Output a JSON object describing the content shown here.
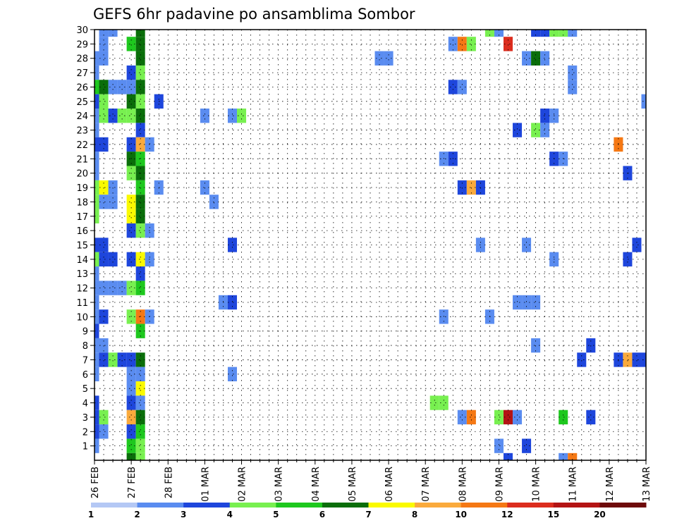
{
  "chart_data": {
    "type": "heatmap",
    "title": "GEFS 6hr padavine po ansamblima Sombor",
    "xlabel": "",
    "ylabel": "",
    "x_ticks": [
      "26 FEB",
      "27 FEB",
      "28 FEB",
      "01 MAR",
      "02 MAR",
      "03 MAR",
      "04 MAR",
      "05 MAR",
      "06 MAR",
      "07 MAR",
      "08 MAR",
      "09 MAR",
      "10 MAR",
      "11 MAR",
      "12 MAR",
      "13 MAR"
    ],
    "y_ticks": [
      "1",
      "2",
      "3",
      "4",
      "5",
      "6",
      "7",
      "8",
      "9",
      "10",
      "11",
      "12",
      "13",
      "14",
      "15",
      "16",
      "17",
      "18",
      "19",
      "20",
      "21",
      "22",
      "23",
      "24",
      "25",
      "26",
      "27",
      "28",
      "29",
      "30"
    ],
    "xlim": [
      0,
      15
    ],
    "ylim": [
      0,
      30
    ],
    "grid": true,
    "levels": [
      1,
      2,
      3,
      4,
      5,
      6,
      7,
      8,
      10,
      12,
      15,
      20
    ],
    "level_labels": [
      "1",
      "2",
      "3",
      "4",
      "5",
      "6",
      "7",
      "8",
      "10",
      "12",
      "15",
      "20"
    ],
    "colors": [
      "#b4c8f5",
      "#5a8cf0",
      "#1e46dc",
      "#78f050",
      "#1ec81e",
      "#0a6e0a",
      "#fafa00",
      "#faaa3c",
      "#f57814",
      "#dc2d1e",
      "#b41414",
      "#6e0a0a"
    ],
    "cells": [
      [
        0.25,
        30,
        1
      ],
      [
        0.5,
        30,
        1
      ],
      [
        1.25,
        30,
        5
      ],
      [
        10.75,
        30,
        3
      ],
      [
        11,
        30,
        1
      ],
      [
        12,
        30,
        2
      ],
      [
        12.25,
        30,
        2
      ],
      [
        12.5,
        30,
        3
      ],
      [
        12.75,
        30,
        3
      ],
      [
        13,
        30,
        1
      ],
      [
        0.25,
        29,
        1
      ],
      [
        1,
        29,
        4
      ],
      [
        1.25,
        29,
        5
      ],
      [
        9.75,
        29,
        1
      ],
      [
        10,
        29,
        8
      ],
      [
        10.25,
        29,
        3
      ],
      [
        11.25,
        29,
        9
      ],
      [
        0,
        28,
        1
      ],
      [
        0.25,
        28,
        1
      ],
      [
        1.25,
        28,
        5
      ],
      [
        7.75,
        28,
        1
      ],
      [
        8,
        28,
        1
      ],
      [
        11.75,
        28,
        1
      ],
      [
        12,
        28,
        5
      ],
      [
        12.25,
        28,
        1
      ],
      [
        0,
        27,
        1
      ],
      [
        1,
        27,
        2
      ],
      [
        1.25,
        27,
        3
      ],
      [
        13,
        27,
        1
      ],
      [
        0,
        26,
        4
      ],
      [
        0.25,
        26,
        5
      ],
      [
        0.5,
        26,
        1
      ],
      [
        0.75,
        26,
        1
      ],
      [
        1,
        26,
        1
      ],
      [
        1.25,
        26,
        5
      ],
      [
        9.75,
        26,
        2
      ],
      [
        10,
        26,
        1
      ],
      [
        13,
        26,
        1
      ],
      [
        0,
        25,
        2
      ],
      [
        0.25,
        25,
        3
      ],
      [
        1,
        25,
        5
      ],
      [
        1.25,
        25,
        3
      ],
      [
        1.75,
        25,
        2
      ],
      [
        15,
        25,
        1
      ],
      [
        0,
        24,
        1
      ],
      [
        0.25,
        24,
        3
      ],
      [
        0.5,
        24,
        2
      ],
      [
        0.75,
        24,
        3
      ],
      [
        1,
        24,
        3
      ],
      [
        1.25,
        24,
        5
      ],
      [
        3,
        24,
        1
      ],
      [
        3.75,
        24,
        1
      ],
      [
        4,
        24,
        3
      ],
      [
        12.25,
        24,
        2
      ],
      [
        12.5,
        24,
        1
      ],
      [
        0,
        23,
        1
      ],
      [
        1.25,
        23,
        2
      ],
      [
        11.5,
        23,
        2
      ],
      [
        12,
        23,
        3
      ],
      [
        12.25,
        23,
        1
      ],
      [
        0,
        22,
        2
      ],
      [
        0.25,
        22,
        2
      ],
      [
        1,
        22,
        2
      ],
      [
        1.25,
        22,
        7
      ],
      [
        1.5,
        22,
        1
      ],
      [
        14.25,
        22,
        8
      ],
      [
        0,
        21,
        1
      ],
      [
        1,
        21,
        5
      ],
      [
        1.25,
        21,
        4
      ],
      [
        9.5,
        21,
        1
      ],
      [
        9.75,
        21,
        2
      ],
      [
        12.5,
        21,
        2
      ],
      [
        12.75,
        21,
        1
      ],
      [
        0,
        20,
        1
      ],
      [
        1,
        20,
        3
      ],
      [
        1.25,
        20,
        5
      ],
      [
        14.5,
        20,
        2
      ],
      [
        0,
        19,
        3
      ],
      [
        0.25,
        19,
        6
      ],
      [
        0.5,
        19,
        1
      ],
      [
        1.25,
        19,
        4
      ],
      [
        1.75,
        19,
        1
      ],
      [
        3,
        19,
        1
      ],
      [
        10,
        19,
        2
      ],
      [
        10.25,
        19,
        7
      ],
      [
        10.5,
        19,
        2
      ],
      [
        0,
        18,
        3
      ],
      [
        0.25,
        18,
        1
      ],
      [
        0.5,
        18,
        1
      ],
      [
        1,
        18,
        6
      ],
      [
        1.25,
        18,
        5
      ],
      [
        3.25,
        18,
        1
      ],
      [
        0,
        17,
        3
      ],
      [
        1,
        17,
        6
      ],
      [
        1.25,
        17,
        5
      ],
      [
        1,
        16,
        2
      ],
      [
        1.25,
        16,
        3
      ],
      [
        1.5,
        16,
        1
      ],
      [
        0,
        15,
        2
      ],
      [
        0.25,
        15,
        2
      ],
      [
        3.75,
        15,
        2
      ],
      [
        10.5,
        15,
        1
      ],
      [
        11.75,
        15,
        1
      ],
      [
        14.75,
        15,
        2
      ],
      [
        0,
        14,
        3
      ],
      [
        0.25,
        14,
        2
      ],
      [
        0.5,
        14,
        2
      ],
      [
        1,
        14,
        2
      ],
      [
        1.25,
        14,
        6
      ],
      [
        1.5,
        14,
        1
      ],
      [
        12.5,
        14,
        1
      ],
      [
        14.5,
        14,
        2
      ],
      [
        0,
        13,
        1
      ],
      [
        1.25,
        13,
        2
      ],
      [
        0,
        12,
        1
      ],
      [
        0.25,
        12,
        1
      ],
      [
        0.5,
        12,
        1
      ],
      [
        0.75,
        12,
        1
      ],
      [
        1,
        12,
        3
      ],
      [
        1.25,
        12,
        4
      ],
      [
        0,
        11,
        1
      ],
      [
        3.5,
        11,
        1
      ],
      [
        3.75,
        11,
        2
      ],
      [
        11.5,
        11,
        1
      ],
      [
        11.75,
        11,
        1
      ],
      [
        12,
        11,
        1
      ],
      [
        0,
        10,
        1
      ],
      [
        0.25,
        10,
        2
      ],
      [
        1,
        10,
        3
      ],
      [
        1.25,
        10,
        8
      ],
      [
        1.5,
        10,
        1
      ],
      [
        9.5,
        10,
        1
      ],
      [
        10.75,
        10,
        1
      ],
      [
        0,
        9,
        2
      ],
      [
        1.25,
        9,
        4
      ],
      [
        0,
        8,
        1
      ],
      [
        0.25,
        8,
        1
      ],
      [
        12,
        8,
        1
      ],
      [
        13.5,
        8,
        2
      ],
      [
        0,
        7,
        1
      ],
      [
        0.25,
        7,
        2
      ],
      [
        0.5,
        7,
        3
      ],
      [
        0.75,
        7,
        2
      ],
      [
        1,
        7,
        2
      ],
      [
        1.25,
        7,
        5
      ],
      [
        13.25,
        7,
        2
      ],
      [
        14.25,
        7,
        2
      ],
      [
        14.5,
        7,
        7
      ],
      [
        14.75,
        7,
        2
      ],
      [
        15,
        7,
        2
      ],
      [
        0,
        6,
        1
      ],
      [
        1,
        6,
        1
      ],
      [
        1.25,
        6,
        1
      ],
      [
        3.75,
        6,
        1
      ],
      [
        1,
        5,
        1
      ],
      [
        1.25,
        5,
        6
      ],
      [
        0,
        4,
        2
      ],
      [
        1,
        4,
        2
      ],
      [
        1.25,
        4,
        1
      ],
      [
        9.25,
        4,
        3
      ],
      [
        9.5,
        4,
        3
      ],
      [
        0,
        3,
        2
      ],
      [
        0.25,
        3,
        3
      ],
      [
        1,
        3,
        7
      ],
      [
        1.25,
        3,
        5
      ],
      [
        10,
        3,
        1
      ],
      [
        10.25,
        3,
        8
      ],
      [
        11,
        3,
        3
      ],
      [
        11.25,
        3,
        10
      ],
      [
        11.5,
        3,
        1
      ],
      [
        12.75,
        3,
        4
      ],
      [
        13.5,
        3,
        2
      ],
      [
        0,
        2,
        2
      ],
      [
        0.25,
        2,
        1
      ],
      [
        1,
        2,
        2
      ],
      [
        1.25,
        2,
        4
      ],
      [
        0,
        1,
        1
      ],
      [
        1,
        1,
        4
      ],
      [
        1.25,
        1,
        3
      ],
      [
        11,
        1,
        1
      ],
      [
        11.75,
        1,
        2
      ],
      [
        1,
        0,
        5
      ],
      [
        1.25,
        0,
        3
      ],
      [
        11.25,
        0,
        2
      ],
      [
        12.75,
        0,
        1
      ],
      [
        13,
        0,
        8
      ]
    ]
  }
}
